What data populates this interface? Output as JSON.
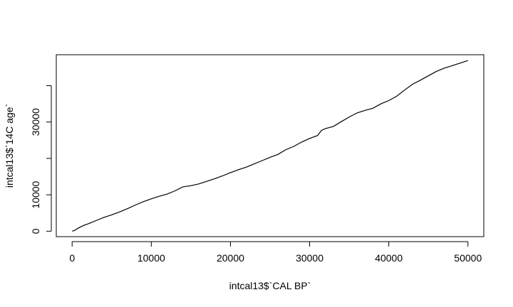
{
  "chart_data": {
    "type": "line",
    "xlabel": "intcal13$`CAL BP`",
    "ylabel": "intcal13$`14C age`",
    "xlim": [
      -2000,
      52000
    ],
    "ylim": [
      -1500,
      48500
    ],
    "xticks": [
      0,
      10000,
      20000,
      30000,
      40000,
      50000
    ],
    "yticks_major": [
      0,
      10000,
      30000
    ],
    "yticks_minor": [
      20000,
      40000
    ],
    "grid": false,
    "series": [
      {
        "x": [
          0,
          300,
          500,
          1000,
          1500,
          2000,
          3000,
          4000,
          5000,
          6000,
          7000,
          8000,
          9000,
          10000,
          11000,
          12000,
          13000,
          14000,
          15000,
          16000,
          17000,
          18000,
          19000,
          20000,
          21000,
          22000,
          23000,
          24000,
          25000,
          26000,
          27000,
          28000,
          29000,
          30000,
          31000,
          31500,
          32000,
          33000,
          34000,
          35000,
          36000,
          37000,
          38000,
          39000,
          40000,
          41000,
          42000,
          43000,
          44000,
          45000,
          46000,
          47000,
          48000,
          49000,
          50000
        ],
        "y": [
          0,
          200,
          500,
          1100,
          1600,
          2000,
          2900,
          3800,
          4500,
          5300,
          6200,
          7200,
          8100,
          8900,
          9600,
          10200,
          11100,
          12200,
          12500,
          13000,
          13700,
          14400,
          15200,
          16100,
          16900,
          17600,
          18500,
          19400,
          20300,
          21100,
          22400,
          23300,
          24500,
          25500,
          26300,
          27700,
          28200,
          28800,
          30100,
          31400,
          32500,
          33200,
          33800,
          35000,
          35900,
          37100,
          38800,
          40400,
          41500,
          42700,
          43900,
          44800,
          45500,
          46200,
          46900
        ]
      }
    ]
  }
}
